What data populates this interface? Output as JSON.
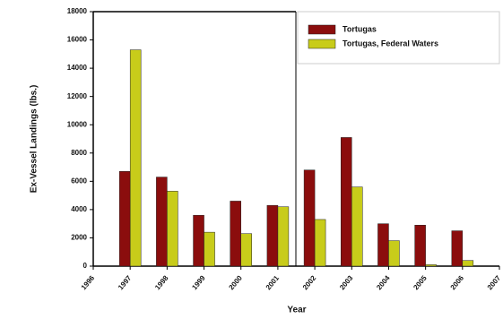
{
  "chart_data": {
    "type": "bar",
    "x_label": "Year",
    "y_label": "Ex-Vessel Landings (lbs.)",
    "x": [
      1997,
      1998,
      1999,
      2000,
      2001,
      2002,
      2003,
      2004,
      2005,
      2006
    ],
    "series": [
      {
        "name": "Tortugas",
        "color": "#8b0d0d",
        "values": [
          6700,
          6300,
          3600,
          4600,
          4300,
          6800,
          9100,
          3000,
          2900,
          2500
        ]
      },
      {
        "name": "Tortugas, Federal Waters",
        "color": "#c8cc1a",
        "values": [
          15300,
          5300,
          2400,
          2300,
          4200,
          3300,
          5600,
          1800,
          100,
          400
        ]
      }
    ],
    "xlim": [
      1996,
      2007
    ],
    "xticks": [
      1996,
      1997,
      1998,
      1999,
      2000,
      2001,
      2002,
      2003,
      2004,
      2005,
      2006,
      2007
    ],
    "ylim": [
      0,
      18000
    ],
    "yticks": [
      0,
      2000,
      4000,
      6000,
      8000,
      10000,
      12000,
      14000,
      16000,
      18000
    ],
    "legend": "upper right"
  }
}
